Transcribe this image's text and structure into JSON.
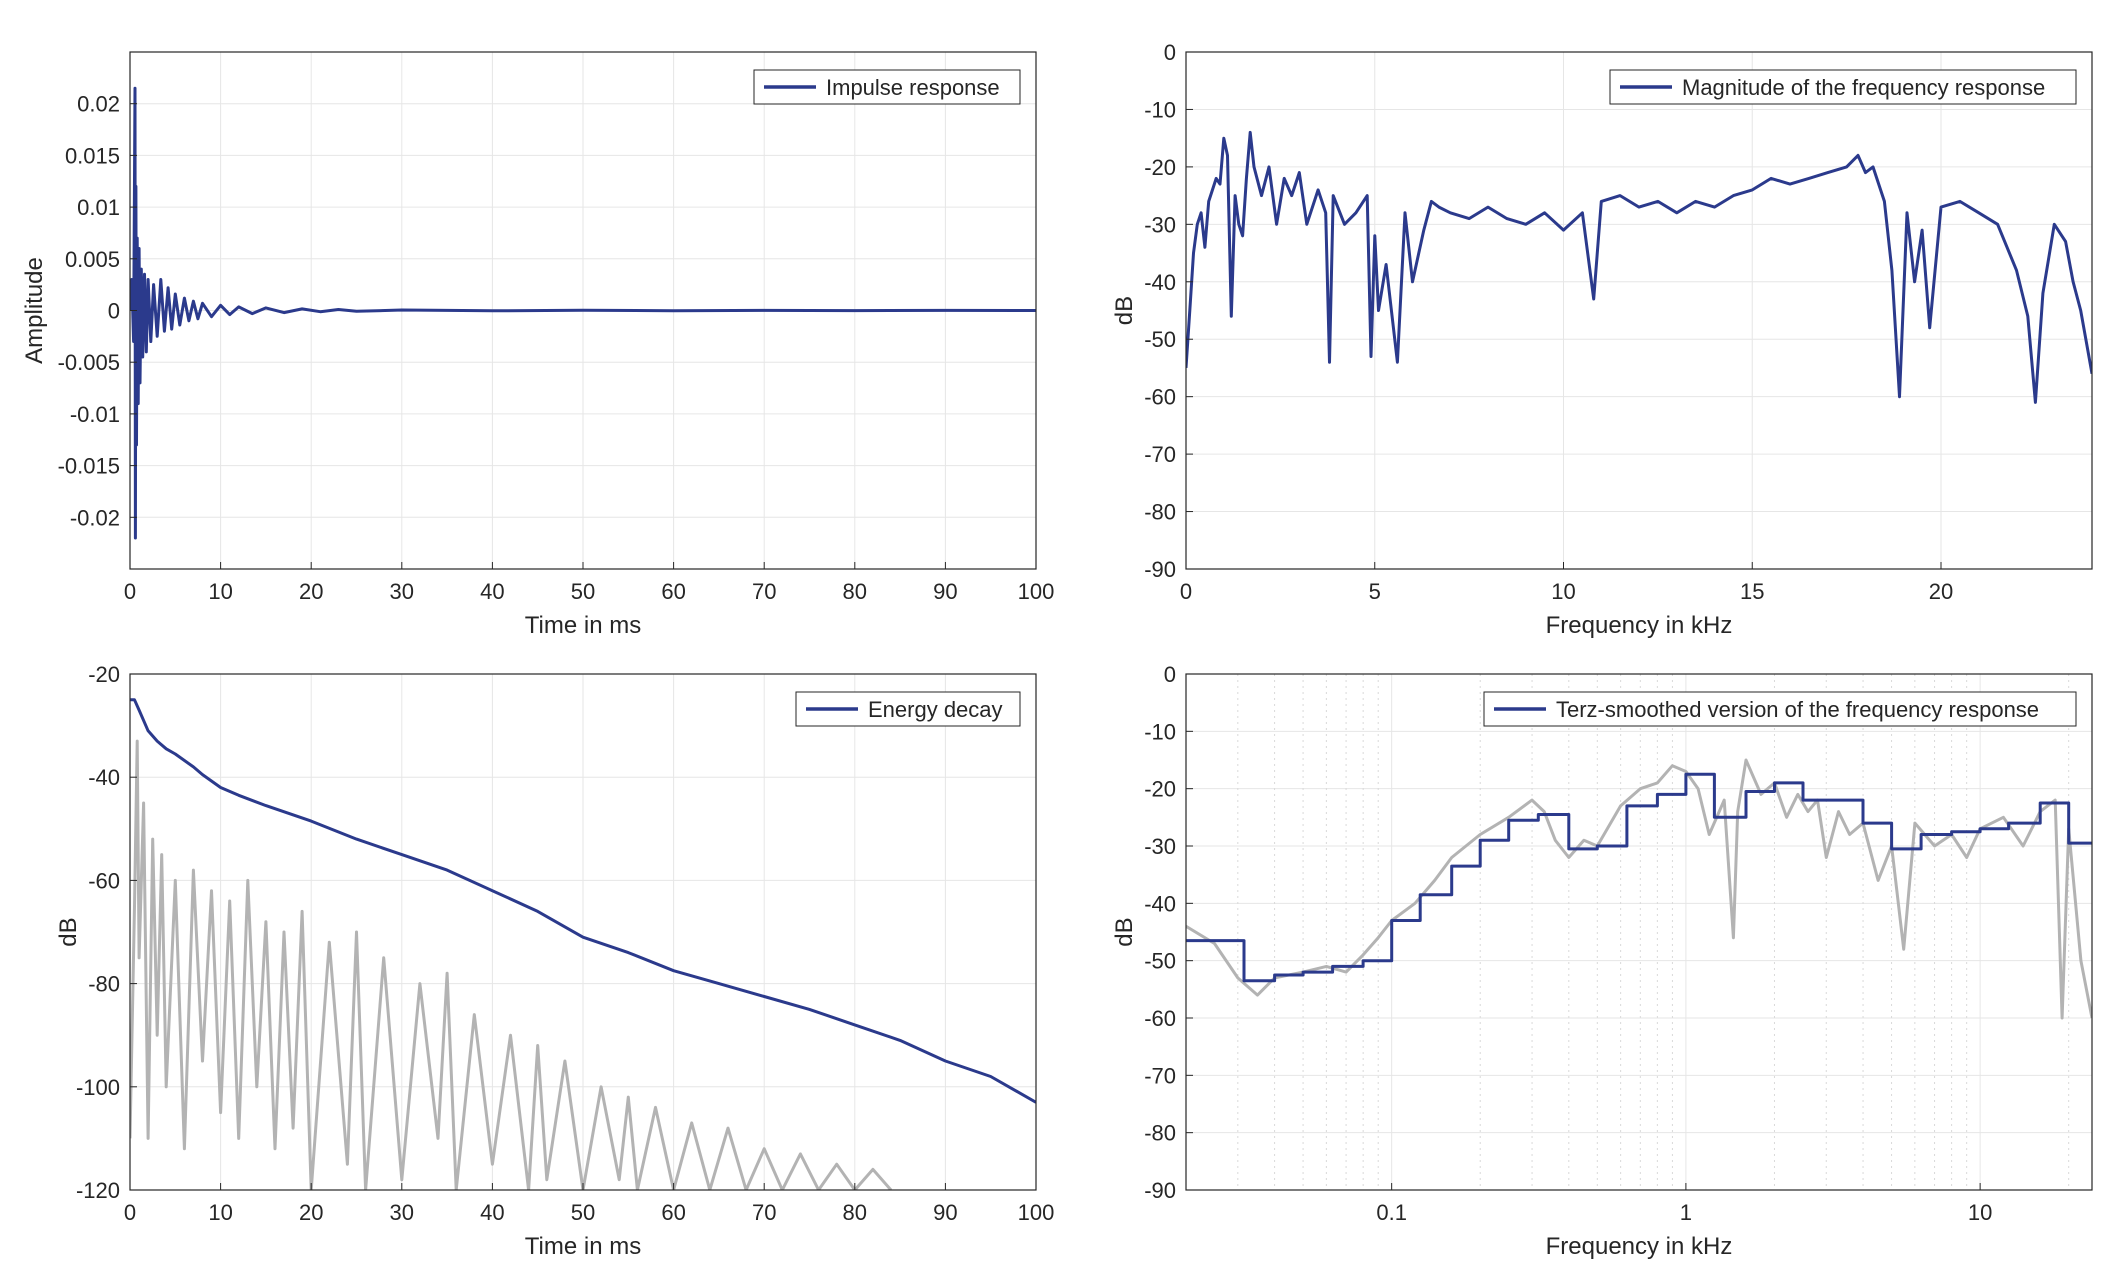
{
  "colors": {
    "primary": "#2b3a8c",
    "secondary": "#b3b3b3",
    "grid": "#e6e6e6",
    "axis": "#262626"
  },
  "chart_data": [
    {
      "id": "impulse",
      "type": "line",
      "xlabel": "Time in ms",
      "ylabel": "Amplitude",
      "xlim": [
        0,
        100
      ],
      "ylim": [
        -0.025,
        0.025
      ],
      "xticks": [
        0,
        10,
        20,
        30,
        40,
        50,
        60,
        70,
        80,
        90,
        100
      ],
      "xtick_labels": [
        "0",
        "10",
        "20",
        "30",
        "40",
        "50",
        "60",
        "70",
        "80",
        "90",
        "100"
      ],
      "yticks": [
        -0.02,
        -0.015,
        -0.01,
        -0.005,
        0,
        0.005,
        0.01,
        0.015,
        0.02
      ],
      "ytick_labels": [
        "-0.02",
        "-0.015",
        "-0.01",
        "-0.005",
        "0",
        "0.005",
        "0.01",
        "0.015",
        "0.02"
      ],
      "grid": true,
      "legend_position": "top-right",
      "series": [
        {
          "name": "Impulse response",
          "color": "#2b3a8c",
          "x": [
            0,
            0.2,
            0.4,
            0.55,
            0.6,
            0.65,
            0.72,
            0.8,
            0.9,
            1.0,
            1.1,
            1.25,
            1.4,
            1.6,
            1.8,
            2.0,
            2.3,
            2.6,
            3.0,
            3.4,
            3.8,
            4.2,
            4.6,
            5.0,
            5.5,
            6.0,
            6.5,
            7.0,
            7.5,
            8.0,
            9.0,
            10.0,
            11.0,
            12.0,
            13.5,
            15.0,
            17.0,
            19.0,
            21.0,
            23.0,
            25.0,
            30.0,
            40.0,
            50.0,
            60.0,
            70.0,
            80.0,
            90.0,
            100.0
          ],
          "y": [
            0,
            0.003,
            -0.003,
            0.0215,
            -0.022,
            0.012,
            -0.013,
            0.007,
            -0.009,
            0.006,
            -0.007,
            0.004,
            -0.0045,
            0.0035,
            -0.004,
            0.003,
            -0.003,
            0.0025,
            -0.0025,
            0.003,
            -0.002,
            0.0022,
            -0.0018,
            0.0016,
            -0.0014,
            0.0012,
            -0.001,
            0.0009,
            -0.0008,
            0.0007,
            -0.0006,
            0.0005,
            -0.0004,
            0.00035,
            -0.0003,
            0.00025,
            -0.0002,
            0.00015,
            -0.00012,
            0.0001,
            -8e-05,
            5e-05,
            -3e-05,
            2e-05,
            -2e-05,
            1e-05,
            -1e-05,
            1e-05,
            0
          ]
        }
      ]
    },
    {
      "id": "magnitude",
      "type": "line",
      "xlabel": "Frequency in kHz",
      "ylabel": "dB",
      "xlim": [
        0,
        24
      ],
      "ylim": [
        -90,
        0
      ],
      "xticks": [
        0,
        5,
        10,
        15,
        20
      ],
      "xtick_labels": [
        "0",
        "5",
        "10",
        "15",
        "20"
      ],
      "yticks": [
        0,
        -10,
        -20,
        -30,
        -40,
        -50,
        -60,
        -70,
        -80,
        -90
      ],
      "ytick_labels": [
        "0",
        "-10",
        "-20",
        "-30",
        "-40",
        "-50",
        "-60",
        "-70",
        "-80",
        "-90"
      ],
      "grid": true,
      "legend_position": "top-right",
      "series": [
        {
          "name": "Magnitude of the frequency response",
          "color": "#2b3a8c",
          "x": [
            0,
            0.1,
            0.2,
            0.3,
            0.4,
            0.5,
            0.6,
            0.8,
            0.9,
            1.0,
            1.1,
            1.2,
            1.3,
            1.4,
            1.5,
            1.6,
            1.7,
            1.8,
            2.0,
            2.2,
            2.4,
            2.6,
            2.8,
            3.0,
            3.2,
            3.5,
            3.7,
            3.8,
            3.9,
            4.2,
            4.5,
            4.8,
            4.9,
            5.0,
            5.1,
            5.3,
            5.6,
            5.8,
            6.0,
            6.3,
            6.5,
            6.7,
            7.0,
            7.5,
            8.0,
            8.5,
            9.0,
            9.5,
            10.0,
            10.5,
            10.8,
            11.0,
            11.5,
            12.0,
            12.5,
            13.0,
            13.5,
            14.0,
            14.5,
            15.0,
            15.5,
            16.0,
            16.5,
            17.0,
            17.5,
            17.8,
            18.0,
            18.2,
            18.5,
            18.7,
            18.9,
            19.1,
            19.3,
            19.5,
            19.7,
            20.0,
            20.5,
            21.0,
            21.5,
            22.0,
            22.3,
            22.5,
            22.7,
            23.0,
            23.3,
            23.5,
            23.7,
            24.0
          ],
          "y": [
            -55,
            -45,
            -35,
            -30,
            -28,
            -34,
            -26,
            -22,
            -23,
            -15,
            -18,
            -46,
            -25,
            -30,
            -32,
            -22,
            -14,
            -20,
            -25,
            -20,
            -30,
            -22,
            -25,
            -21,
            -30,
            -24,
            -28,
            -54,
            -25,
            -30,
            -28,
            -25,
            -53,
            -32,
            -45,
            -37,
            -54,
            -28,
            -40,
            -31,
            -26,
            -27,
            -28,
            -29,
            -27,
            -29,
            -30,
            -28,
            -31,
            -28,
            -43,
            -26,
            -25,
            -27,
            -26,
            -28,
            -26,
            -27,
            -25,
            -24,
            -22,
            -23,
            -22,
            -21,
            -20,
            -18,
            -21,
            -20,
            -26,
            -38,
            -60,
            -28,
            -40,
            -31,
            -48,
            -27,
            -26,
            -28,
            -30,
            -38,
            -46,
            -61,
            -42,
            -30,
            -33,
            -40,
            -45,
            -56
          ]
        }
      ]
    },
    {
      "id": "energy",
      "type": "line",
      "xlabel": "Time in ms",
      "ylabel": "dB",
      "xlim": [
        0,
        100
      ],
      "ylim": [
        -120,
        -20
      ],
      "xticks": [
        0,
        10,
        20,
        30,
        40,
        50,
        60,
        70,
        80,
        90,
        100
      ],
      "xtick_labels": [
        "0",
        "10",
        "20",
        "30",
        "40",
        "50",
        "60",
        "70",
        "80",
        "90",
        "100"
      ],
      "yticks": [
        -20,
        -40,
        -60,
        -80,
        -100,
        -120
      ],
      "ytick_labels": [
        "-20",
        "-40",
        "-60",
        "-80",
        "-100",
        "-120"
      ],
      "grid": true,
      "legend_position": "top-right",
      "series": [
        {
          "name": "Energy decay",
          "color": "#2b3a8c",
          "x": [
            0,
            0.5,
            1,
            2,
            3,
            4,
            5,
            7,
            8,
            10,
            12,
            15,
            20,
            25,
            30,
            35,
            40,
            45,
            50,
            55,
            60,
            65,
            70,
            75,
            80,
            85,
            90,
            95,
            100
          ],
          "y": [
            -25,
            -25,
            -27,
            -31,
            -33,
            -34.5,
            -35.5,
            -38,
            -39.5,
            -42,
            -43.5,
            -45.5,
            -48.5,
            -52,
            -55,
            -58,
            -62,
            -66,
            -71,
            -74,
            -77.5,
            -80,
            -82.5,
            -85,
            -88,
            -91,
            -95,
            -98,
            -103
          ]
        },
        {
          "color": "#b3b3b3",
          "x": [
            0,
            0.5,
            0.8,
            1,
            1.5,
            2,
            2.5,
            3,
            3.5,
            4,
            5,
            6,
            7,
            8,
            9,
            10,
            11,
            12,
            13,
            14,
            15,
            16,
            17,
            18,
            19,
            20,
            22,
            24,
            25,
            26,
            28,
            30,
            32,
            34,
            35,
            36,
            38,
            40,
            42,
            44,
            45,
            46,
            48,
            50,
            52,
            54,
            55,
            56,
            58,
            60,
            62,
            64,
            66,
            68,
            70,
            72,
            74,
            76,
            78,
            80,
            82,
            84
          ],
          "y": [
            -110,
            -65,
            -33,
            -75,
            -45,
            -110,
            -52,
            -90,
            -55,
            -100,
            -60,
            -112,
            -58,
            -95,
            -62,
            -105,
            -64,
            -110,
            -60,
            -100,
            -68,
            -112,
            -70,
            -108,
            -66,
            -120,
            -72,
            -115,
            -70,
            -120,
            -75,
            -118,
            -80,
            -110,
            -78,
            -120,
            -86,
            -115,
            -90,
            -120,
            -92,
            -118,
            -95,
            -120,
            -100,
            -118,
            -102,
            -120,
            -104,
            -120,
            -107,
            -120,
            -108,
            -120,
            -112,
            -120,
            -113,
            -120,
            -115,
            -120,
            -116,
            -120
          ]
        }
      ]
    },
    {
      "id": "terz",
      "type": "line",
      "xscale": "log",
      "xlabel": "Frequency in kHz",
      "ylabel": "dB",
      "xlim": [
        0.02,
        24
      ],
      "ylim": [
        -90,
        0
      ],
      "xticks": [
        0.1,
        1,
        10
      ],
      "xtick_labels": [
        "0.1",
        "1",
        "10"
      ],
      "yticks": [
        0,
        -10,
        -20,
        -30,
        -40,
        -50,
        -60,
        -70,
        -80,
        -90
      ],
      "ytick_labels": [
        "0",
        "-10",
        "-20",
        "-30",
        "-40",
        "-50",
        "-60",
        "-70",
        "-80",
        "-90"
      ],
      "grid": true,
      "legend_position": "top-right",
      "series": [
        {
          "name": "Terz-smoothed version of the frequency response",
          "color": "#2b3a8c",
          "x": [
            0.02,
            0.0315,
            0.0315,
            0.04,
            0.04,
            0.05,
            0.05,
            0.063,
            0.063,
            0.08,
            0.08,
            0.1,
            0.1,
            0.125,
            0.125,
            0.16,
            0.16,
            0.2,
            0.2,
            0.25,
            0.25,
            0.315,
            0.315,
            0.4,
            0.4,
            0.5,
            0.5,
            0.63,
            0.63,
            0.8,
            0.8,
            1.0,
            1.0,
            1.25,
            1.25,
            1.6,
            1.6,
            2.0,
            2.0,
            2.5,
            2.5,
            3.15,
            3.15,
            4.0,
            4.0,
            5.0,
            5.0,
            6.3,
            6.3,
            8.0,
            8.0,
            10.0,
            10.0,
            12.5,
            12.5,
            16.0,
            16.0,
            20.0,
            20.0,
            24.0
          ],
          "y": [
            -46.5,
            -46.5,
            -53.5,
            -53.5,
            -52.5,
            -52.5,
            -52,
            -52,
            -51,
            -51,
            -50,
            -50,
            -43,
            -43,
            -38.5,
            -38.5,
            -33.5,
            -33.5,
            -29,
            -29,
            -25.5,
            -25.5,
            -24.5,
            -24.5,
            -30.5,
            -30.5,
            -30,
            -30,
            -23,
            -23,
            -21,
            -21,
            -17.5,
            -17.5,
            -25,
            -25,
            -20.5,
            -20.5,
            -19,
            -19,
            -22,
            -22,
            -22,
            -22,
            -26,
            -26,
            -30.5,
            -30.5,
            -28,
            -28,
            -27.5,
            -27.5,
            -27,
            -27,
            -26,
            -26,
            -22.5,
            -22.5,
            -29.5,
            -29.5
          ]
        },
        {
          "color": "#b3b3b3",
          "x": [
            0.02,
            0.025,
            0.03,
            0.035,
            0.04,
            0.05,
            0.06,
            0.07,
            0.08,
            0.09,
            0.1,
            0.12,
            0.14,
            0.16,
            0.2,
            0.25,
            0.3,
            0.33,
            0.36,
            0.4,
            0.45,
            0.5,
            0.6,
            0.7,
            0.8,
            0.9,
            1.0,
            1.1,
            1.2,
            1.35,
            1.45,
            1.5,
            1.6,
            1.8,
            2.0,
            2.2,
            2.4,
            2.6,
            2.8,
            3.0,
            3.3,
            3.6,
            4.0,
            4.5,
            5.0,
            5.5,
            6.0,
            7.0,
            8.0,
            9.0,
            10.0,
            12.0,
            14.0,
            16.0,
            18.0,
            19.0,
            20.0,
            22.0,
            24.0
          ],
          "y": [
            -44,
            -47,
            -53,
            -56,
            -53,
            -52,
            -51,
            -52,
            -49,
            -46,
            -43,
            -40,
            -36,
            -32,
            -28,
            -25,
            -22,
            -24,
            -29,
            -32,
            -29,
            -30,
            -23,
            -20,
            -19,
            -16,
            -17,
            -20,
            -28,
            -22,
            -46,
            -24,
            -15,
            -21,
            -19,
            -25,
            -21,
            -24,
            -22,
            -32,
            -24,
            -28,
            -26,
            -36,
            -30,
            -48,
            -26,
            -30,
            -28,
            -32,
            -27,
            -25,
            -30,
            -24,
            -22,
            -60,
            -27,
            -50,
            -60
          ]
        }
      ]
    }
  ]
}
